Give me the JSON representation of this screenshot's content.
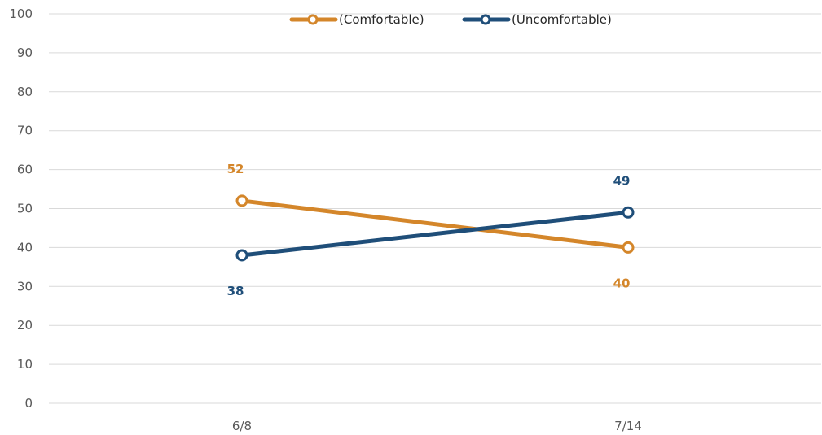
{
  "chart_data": {
    "type": "line",
    "categories": [
      "6/8",
      "7/14"
    ],
    "series": [
      {
        "name": "(Comfortable)",
        "values": [
          52,
          40
        ],
        "color": "#D4862A",
        "labels": [
          "52",
          "40"
        ]
      },
      {
        "name": "(Uncomfortable)",
        "values": [
          38,
          49
        ],
        "color": "#1F4E79",
        "labels": [
          "38",
          "49"
        ]
      }
    ],
    "title": "",
    "xlabel": "",
    "ylabel": "",
    "ylim": [
      0,
      100
    ],
    "yticks": [
      "0",
      "10",
      "20",
      "30",
      "40",
      "50",
      "60",
      "70",
      "80",
      "90",
      "100"
    ],
    "grid": true,
    "legend_position": "top-center"
  }
}
